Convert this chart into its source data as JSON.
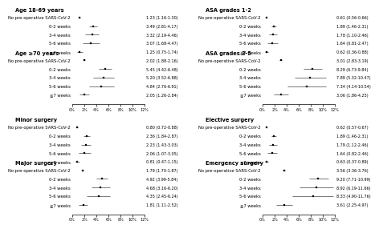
{
  "panels": [
    {
      "title": "Age 18-69 years",
      "rows": [
        {
          "label": "No pre-operative SARS-CoV-2",
          "mean": 1.23,
          "lo": 1.16,
          "hi": 1.3,
          "text": "1.23 (1.16-1.30)"
        },
        {
          "label": "0-2 weeks",
          "mean": 3.49,
          "lo": 2.81,
          "hi": 4.17,
          "text": "3.49 (2.81-4.17)"
        },
        {
          "label": "3-4 weeks",
          "mean": 3.32,
          "lo": 2.19,
          "hi": 4.46,
          "text": "3.32 (2.19-4.46)"
        },
        {
          "label": "5-6 weeks",
          "mean": 3.07,
          "lo": 1.68,
          "hi": 4.47,
          "text": "3.07 (1.68-4.47)"
        },
        {
          "label": "≧7 weeks",
          "mean": 1.25,
          "lo": 0.75,
          "hi": 1.74,
          "text": "1.25 (0.75-1.74)"
        }
      ]
    },
    {
      "title": "Age ≥70 years",
      "rows": [
        {
          "label": "No pre-operative SARS-CoV-2",
          "mean": 2.02,
          "lo": 1.88,
          "hi": 2.16,
          "text": "2.02 (1.88-2.16)"
        },
        {
          "label": "0-2 weeks",
          "mean": 5.45,
          "lo": 4.42,
          "hi": 6.48,
          "text": "5.45 (4.42-6.48)"
        },
        {
          "label": "3-4 weeks",
          "mean": 5.2,
          "lo": 3.52,
          "hi": 6.88,
          "text": "5.20 (3.52-6.88)"
        },
        {
          "label": "5-6 weeks",
          "mean": 4.84,
          "lo": 2.76,
          "hi": 6.91,
          "text": "4.84 (2.76-6.91)"
        },
        {
          "label": "≧7 weeks",
          "mean": 2.05,
          "lo": 1.26,
          "hi": 2.84,
          "text": "2.05 (1.26-2.84)"
        }
      ]
    },
    {
      "title": "ASA grades 1-2",
      "rows": [
        {
          "label": "No pre-operative SARS-CoV-2",
          "mean": 0.61,
          "lo": 0.56,
          "hi": 0.66,
          "text": "0.61 (0.56-0.66)"
        },
        {
          "label": "0-2 weeks",
          "mean": 1.89,
          "lo": 1.46,
          "hi": 2.31,
          "text": "1.89 (1.46-2.31)"
        },
        {
          "label": "3-4 weeks",
          "mean": 1.78,
          "lo": 1.1,
          "hi": 2.46,
          "text": "1.78 (1.10-2.46)"
        },
        {
          "label": "5-6 weeks",
          "mean": 1.64,
          "lo": 0.81,
          "hi": 2.47,
          "text": "1.64 (0.81-2.47)"
        },
        {
          "label": "≧7 weeks",
          "mean": 0.62,
          "lo": 0.36,
          "hi": 0.88,
          "text": "0.62 (0.36-0.88)"
        }
      ]
    },
    {
      "title": "ASA grades 3-5",
      "rows": [
        {
          "label": "No pre-operative SARS-CoV-2",
          "mean": 3.01,
          "lo": 2.83,
          "hi": 3.19,
          "text": "3.01 (2.83-3.19)"
        },
        {
          "label": "0-2 weeks",
          "mean": 8.29,
          "lo": 6.73,
          "hi": 9.84,
          "text": "8.29 (6.73-9.84)"
        },
        {
          "label": "3-4 weeks",
          "mean": 7.89,
          "lo": 5.32,
          "hi": 10.47,
          "text": "7.89 (5.32-10.47)"
        },
        {
          "label": "5-6 weeks",
          "mean": 7.34,
          "lo": 4.14,
          "hi": 10.54,
          "text": "7.34 (4.14-10.54)"
        },
        {
          "label": "≧7 weeks",
          "mean": 3.06,
          "lo": 1.86,
          "hi": 4.25,
          "text": "3.06 (1.86-4.25)"
        }
      ]
    },
    {
      "title": "Minor surgery",
      "rows": [
        {
          "label": "No pre-operative SARS-CoV-2",
          "mean": 0.8,
          "lo": 0.72,
          "hi": 0.88,
          "text": "0.80 (0.72-0.88)"
        },
        {
          "label": "0-2 weeks",
          "mean": 2.36,
          "lo": 1.84,
          "hi": 2.87,
          "text": "2.36 (1.84-2.87)"
        },
        {
          "label": "3-4 weeks",
          "mean": 2.23,
          "lo": 1.43,
          "hi": 3.03,
          "text": "2.23 (1.43-3.03)"
        },
        {
          "label": "5-6 weeks",
          "mean": 2.06,
          "lo": 1.07,
          "hi": 3.05,
          "text": "2.06 (1.07-3.05)"
        },
        {
          "label": "≧7 weeks",
          "mean": 0.81,
          "lo": 0.47,
          "hi": 1.15,
          "text": "0.81 (0.47-1.15)"
        }
      ]
    },
    {
      "title": "Major surgery",
      "rows": [
        {
          "label": "No pre-operative SARS-CoV-2",
          "mean": 1.79,
          "lo": 1.7,
          "hi": 1.87,
          "text": "1.79 (1.70-1.87)"
        },
        {
          "label": "0-2 weeks",
          "mean": 4.92,
          "lo": 3.99,
          "hi": 5.84,
          "text": "4.92 (3.99-5.84)"
        },
        {
          "label": "3-4 weeks",
          "mean": 4.68,
          "lo": 3.16,
          "hi": 6.2,
          "text": "4.68 (3.16-6.20)"
        },
        {
          "label": "5-6 weeks",
          "mean": 4.35,
          "lo": 2.45,
          "hi": 6.24,
          "text": "4.35 (2.45-6.24)"
        },
        {
          "label": "≧7 weeks",
          "mean": 1.81,
          "lo": 1.11,
          "hi": 2.52,
          "text": "1.81 (1.11-2.52)"
        }
      ]
    },
    {
      "title": "Elective surgery",
      "rows": [
        {
          "label": "No pre-operative SARS-CoV-2",
          "mean": 0.62,
          "lo": 0.57,
          "hi": 0.67,
          "text": "0.62 (0.57-0.67)"
        },
        {
          "label": "0-2 weeks",
          "mean": 1.89,
          "lo": 1.46,
          "hi": 2.31,
          "text": "1.89 (1.46-2.31)"
        },
        {
          "label": "3-4 weeks",
          "mean": 1.79,
          "lo": 1.12,
          "hi": 2.46,
          "text": "1.79 (1.12-2.46)"
        },
        {
          "label": "5-6 weeks",
          "mean": 1.64,
          "lo": 0.82,
          "hi": 2.46,
          "text": "1.64 (0.82-2.46)"
        },
        {
          "label": "≧7 weeks",
          "mean": 0.63,
          "lo": 0.37,
          "hi": 0.89,
          "text": "0.63 (0.37-0.89)"
        }
      ]
    },
    {
      "title": "Emergency surgery",
      "rows": [
        {
          "label": "No pre-operative SARS-CoV-2",
          "mean": 3.56,
          "lo": 3.36,
          "hi": 3.76,
          "text": "3.56 (3.36-3.76)"
        },
        {
          "label": "0-2 weeks",
          "mean": 9.2,
          "lo": 7.71,
          "hi": 10.99,
          "text": "9.20 (7.71-10.99)"
        },
        {
          "label": "3-4 weeks",
          "mean": 8.92,
          "lo": 6.19,
          "hi": 11.66,
          "text": "8.92 (6.19-11.66)"
        },
        {
          "label": "5-6 weeks",
          "mean": 8.33,
          "lo": 4.9,
          "hi": 11.76,
          "text": "8.33 (4.90-11.76)"
        },
        {
          "label": "≧7 weeks",
          "mean": 3.61,
          "lo": 2.25,
          "hi": 4.97,
          "text": "3.61 (2.25-4.97)"
        }
      ]
    }
  ],
  "xlim": [
    0,
    12
  ],
  "xticks": [
    0,
    2,
    4,
    6,
    8,
    10,
    12
  ],
  "xticklabels": [
    "0%",
    "2%",
    "4%",
    "6%",
    "8%",
    "10%",
    "12%"
  ],
  "bg_color": "#ffffff",
  "point_color": "#000000",
  "line_color": "#444444",
  "title_fontsize": 4.8,
  "label_fontsize": 3.8,
  "text_fontsize": 3.5,
  "tick_fontsize": 3.5
}
